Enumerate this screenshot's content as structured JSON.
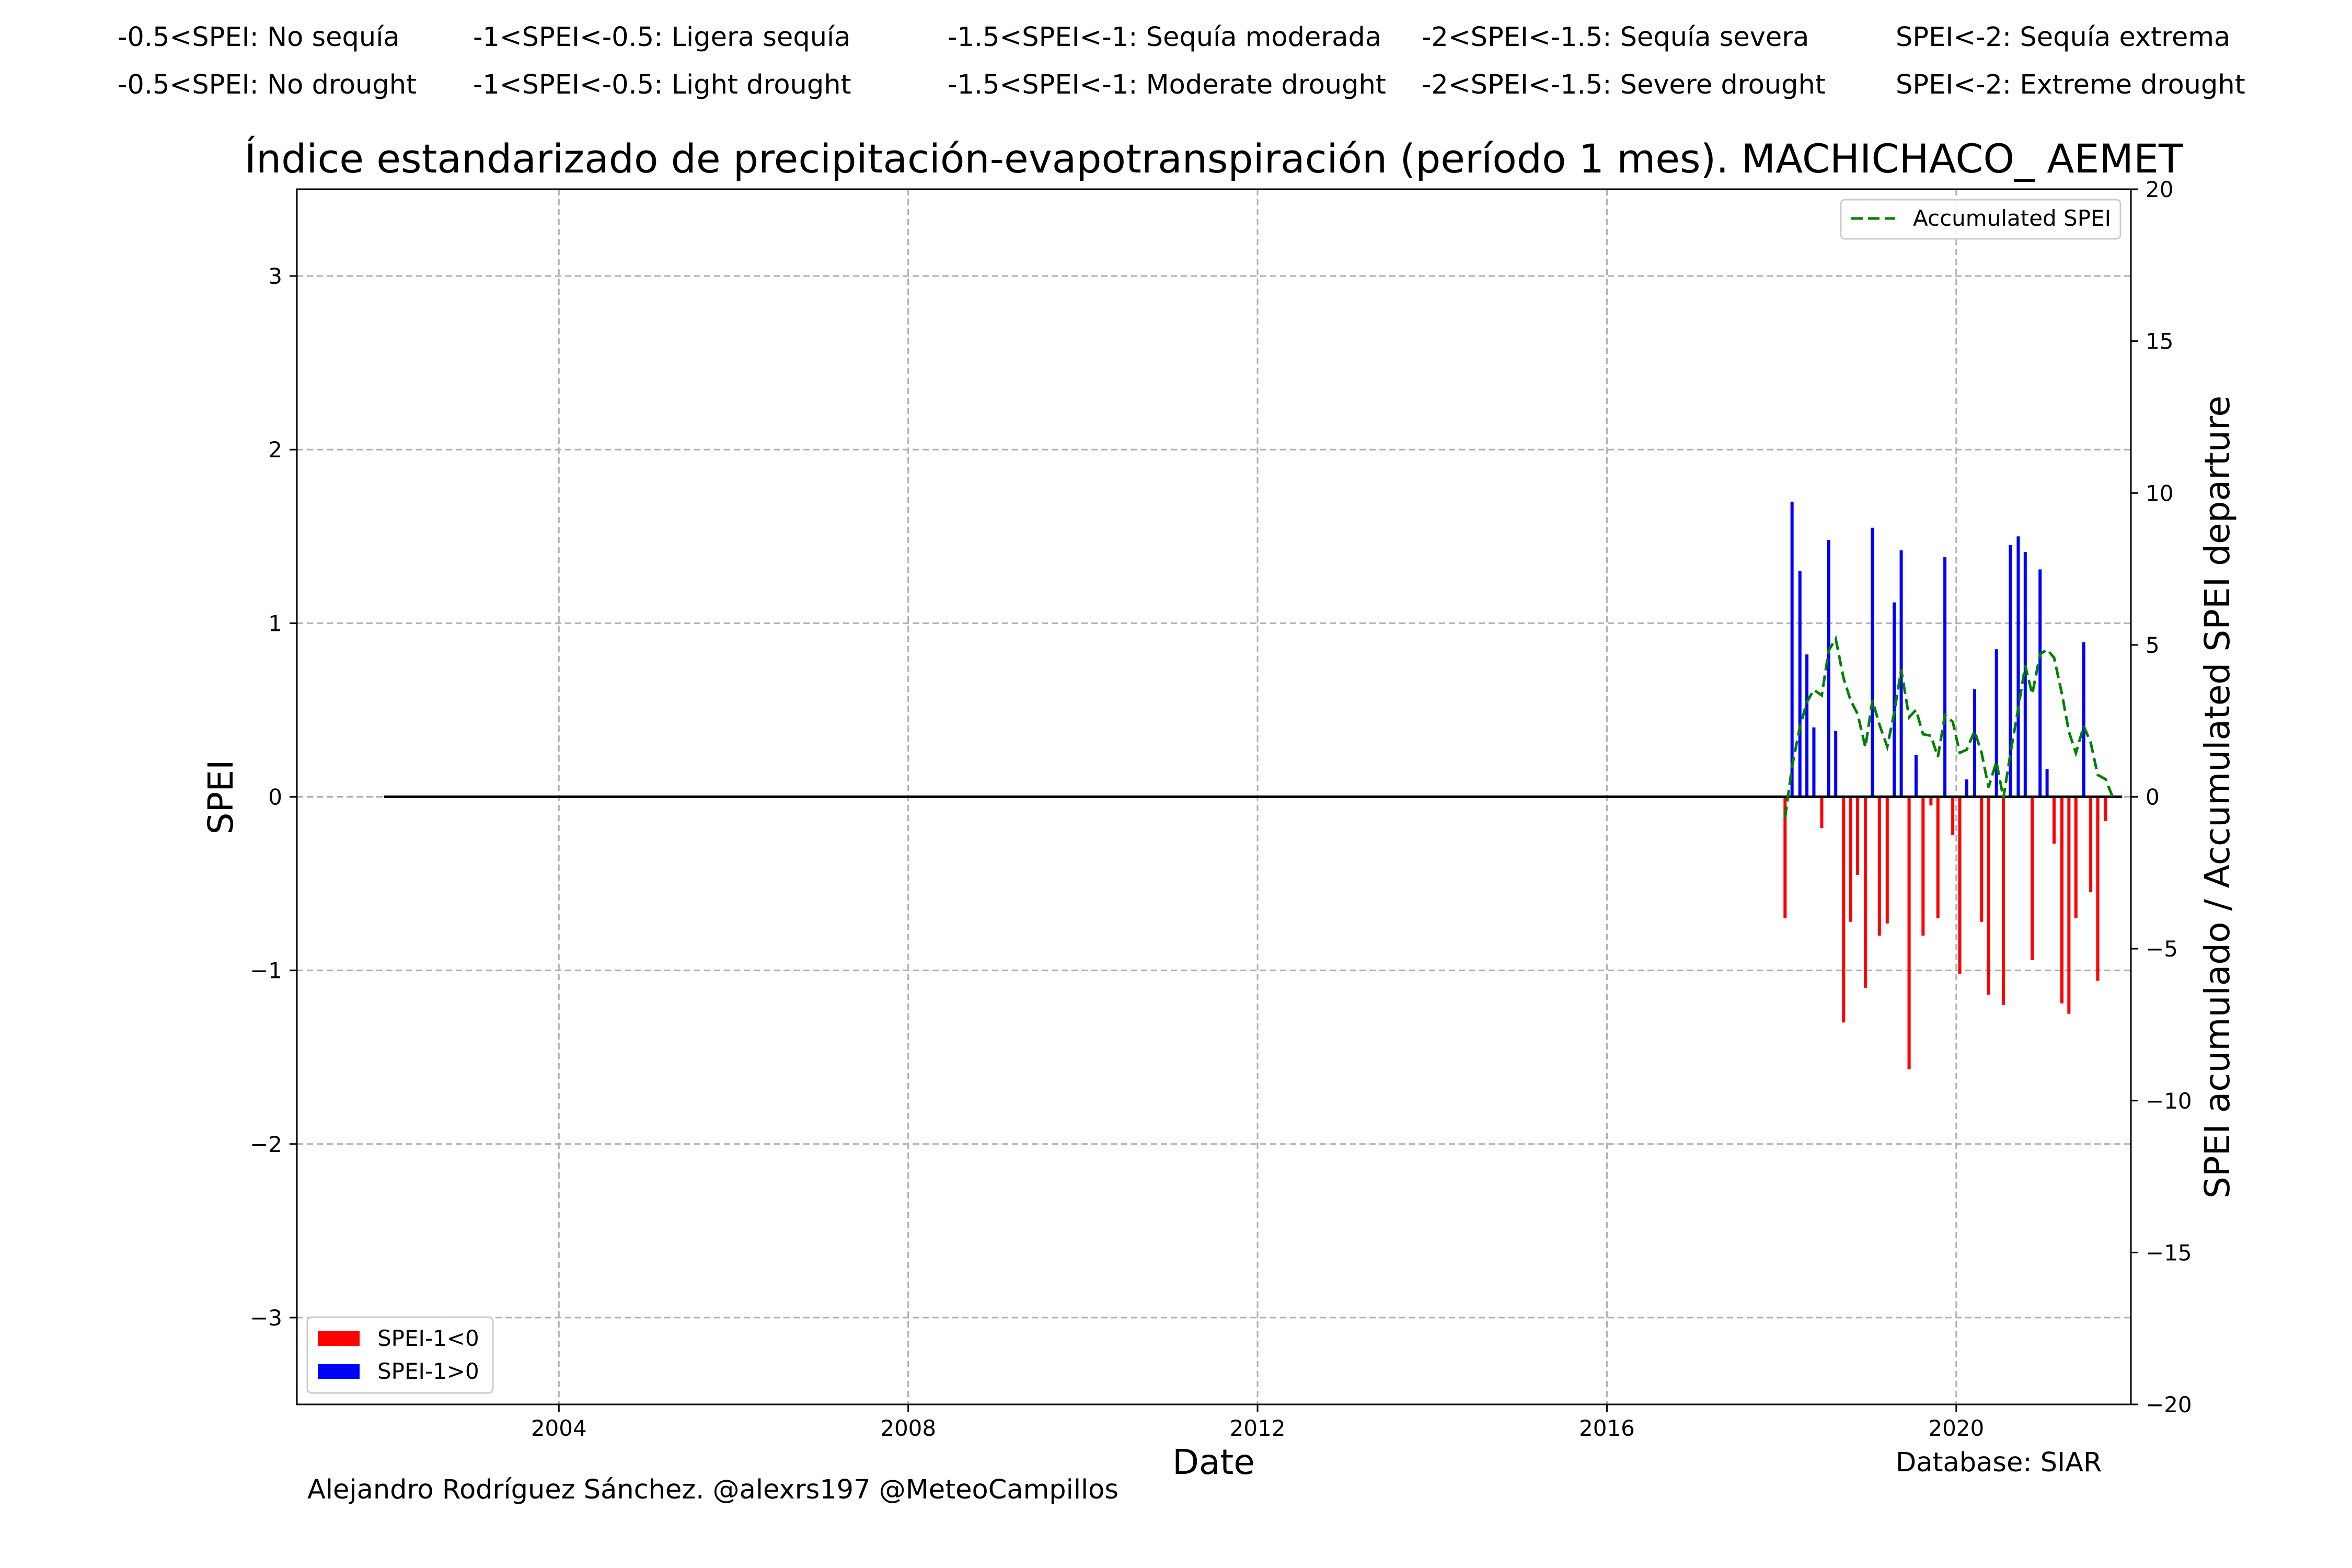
{
  "header": {
    "es": [
      "-0.5<SPEI: No sequía",
      "-1<SPEI<-0.5: Ligera sequía",
      "-1.5<SPEI<-1: Sequía moderada",
      "-2<SPEI<-1.5: Sequía severa",
      "SPEI<-2: Sequía extrema"
    ],
    "en": [
      "-0.5<SPEI: No drought",
      "-1<SPEI<-0.5: Light drought",
      "-1.5<SPEI<-1: Moderate drought",
      "-2<SPEI<-1.5: Severe drought",
      "SPEI<-2: Extreme drought"
    ]
  },
  "footer": {
    "author": "Alejandro Rodríguez Sánchez. @alexrs197 @MeteoCampillos",
    "database": "Database: SIAR"
  },
  "chart_data": {
    "type": "bar",
    "title": "Índice estandarizado de precipitación-evapotranspiración (período 1 mes). MACHICHACO_ AEMET",
    "xlabel": "Date",
    "ylabel": "SPEI",
    "y2label": "SPEI acumulado / Accumulated SPEI departure",
    "xlim": [
      2001.0,
      2022.0
    ],
    "ylim": [
      -3.5,
      3.5
    ],
    "y2lim": [
      -20,
      20
    ],
    "xticks": [
      2004,
      2008,
      2012,
      2016,
      2020
    ],
    "yticks": [
      -3,
      -2,
      -1,
      0,
      1,
      2,
      3
    ],
    "y2ticks": [
      -20,
      -15,
      -10,
      -5,
      0,
      5,
      10,
      15,
      20
    ],
    "xticklabels": [
      "2004",
      "2008",
      "2012",
      "2016",
      "2020"
    ],
    "yticklabels": [
      "−3",
      "−2",
      "−1",
      "0",
      "1",
      "2",
      "3"
    ],
    "y2ticklabels": [
      "−20",
      "−15",
      "−10",
      "−5",
      "0",
      "5",
      "10",
      "15",
      "20"
    ],
    "grid": true,
    "zero_line_x": [
      2002.0,
      2021.9
    ],
    "colors": {
      "negative": "#ff0000",
      "positive": "#0000ff",
      "accumulated": "#008000",
      "zero_line": "#000000"
    },
    "legend_bars": {
      "placement": "lower-left",
      "entries": [
        "SPEI-1<0",
        "SPEI-1>0"
      ]
    },
    "legend_line": {
      "placement": "upper-right",
      "entries": [
        "Accumulated SPEI"
      ]
    },
    "x": [
      2018.04,
      2018.12,
      2018.21,
      2018.29,
      2018.37,
      2018.46,
      2018.54,
      2018.62,
      2018.71,
      2018.79,
      2018.87,
      2018.96,
      2019.04,
      2019.12,
      2019.21,
      2019.29,
      2019.37,
      2019.46,
      2019.54,
      2019.62,
      2019.71,
      2019.79,
      2019.87,
      2019.96,
      2020.04,
      2020.12,
      2020.21,
      2020.29,
      2020.37,
      2020.46,
      2020.54,
      2020.62,
      2020.71,
      2020.79,
      2020.87,
      2020.96,
      2021.04,
      2021.12,
      2021.21,
      2021.29,
      2021.37,
      2021.46,
      2021.54,
      2021.62,
      2021.71,
      2021.79
    ],
    "series": [
      {
        "name": "SPEI-1",
        "values": [
          -0.7,
          1.7,
          1.3,
          0.82,
          0.4,
          -0.18,
          1.48,
          0.38,
          -1.3,
          -0.72,
          -0.45,
          -1.1,
          1.55,
          -0.8,
          -0.73,
          1.12,
          1.42,
          -1.57,
          0.24,
          -0.8,
          -0.05,
          -0.7,
          1.38,
          -0.22,
          -1.02,
          0.1,
          0.62,
          -0.72,
          -1.14,
          0.85,
          -1.2,
          1.45,
          1.5,
          1.41,
          -0.94,
          1.31,
          0.16,
          -0.27,
          -1.19,
          -1.25,
          -0.7,
          0.89,
          -0.55,
          -1.06,
          -0.14,
          0.0
        ]
      },
      {
        "name": "Accumulated SPEI",
        "values": [
          -0.7,
          1.0,
          2.3,
          3.12,
          3.52,
          3.34,
          4.82,
          5.2,
          3.9,
          3.18,
          2.73,
          1.63,
          3.18,
          2.38,
          1.65,
          2.77,
          4.19,
          2.62,
          2.86,
          2.06,
          2.01,
          1.31,
          2.69,
          2.47,
          1.45,
          1.55,
          2.17,
          1.45,
          0.31,
          1.16,
          -0.04,
          1.41,
          2.91,
          4.32,
          3.38,
          4.69,
          4.85,
          4.58,
          3.39,
          2.14,
          1.44,
          2.33,
          1.78,
          0.72,
          0.58,
          0.0
        ]
      }
    ]
  }
}
